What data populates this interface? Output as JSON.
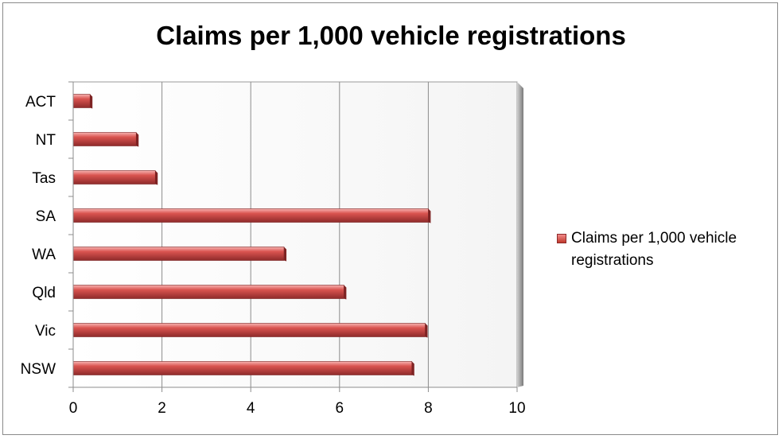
{
  "chart_data": {
    "type": "bar",
    "orientation": "horizontal",
    "title": "Claims per 1,000 vehicle registrations",
    "categories": [
      "ACT",
      "NT",
      "Tas",
      "SA",
      "WA",
      "Qld",
      "Vic",
      "NSW"
    ],
    "series": [
      {
        "name": "Claims per 1,000 vehicle registrations",
        "values": [
          0.38,
          1.42,
          1.85,
          8.0,
          4.75,
          6.1,
          7.93,
          7.63
        ],
        "color": "#c0504d"
      }
    ],
    "xlim": [
      0,
      10
    ],
    "xticks": [
      "0",
      "2",
      "4",
      "6",
      "8",
      "10"
    ],
    "grid": true,
    "legend_position": "right"
  }
}
